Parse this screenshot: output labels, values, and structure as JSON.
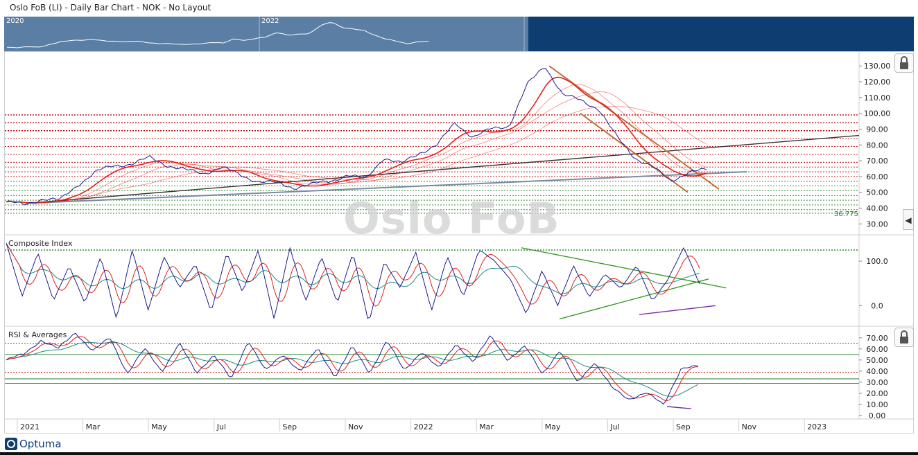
{
  "window": {
    "title": "Oslo FoB (LI) - Daily Bar Chart - NOK - No Layout"
  },
  "navigator": {
    "years": [
      "2020",
      "2022"
    ]
  },
  "watermark": "Oslo FoB",
  "panels": {
    "price": {
      "label": ""
    },
    "composite": {
      "label": "Composite Index"
    },
    "rsi": {
      "label": "RSI & Averages"
    }
  },
  "last_label": "36.775",
  "logo": {
    "text": "Optuma"
  },
  "colors": {
    "price": "#1a1a8c",
    "ma_red": "#e0201a",
    "ma_teal": "#1a8a8a",
    "level_red": "#c00000",
    "level_green": "#1f7a1f",
    "trend_brown": "#c0703a",
    "trend_black": "#333333",
    "trend_gray": "#7a8aa0",
    "nav_left": "#5a7ea4",
    "nav_right": "#0e3d72"
  },
  "chart_data": [
    {
      "type": "line",
      "title": "Oslo FoB (LI) - Daily Bar Chart - NOK",
      "x_ticks": [
        "2021",
        "Mar",
        "May",
        "Jul",
        "Sep",
        "Nov",
        "2022",
        "Mar",
        "May",
        "Jul",
        "Sep",
        "Nov",
        "2023"
      ],
      "y_ticks": [
        "30.00",
        "40.00",
        "50.00",
        "60.00",
        "70.00",
        "80.00",
        "90.00",
        "100.00",
        "110.00",
        "120.00",
        "130.00"
      ],
      "ylim": [
        24,
        138
      ],
      "series": [
        {
          "values": [
            44,
            42,
            46,
            45,
            55,
            63,
            67,
            68,
            72,
            67,
            64,
            62,
            66,
            61,
            57,
            56,
            53,
            55,
            57,
            61,
            58,
            72,
            68,
            75,
            80,
            94,
            85,
            90,
            92,
            118,
            130,
            112,
            108,
            103,
            85,
            72,
            66,
            57,
            63,
            64
          ]
        }
      ],
      "levels_red": [
        99,
        94,
        89,
        84,
        79,
        74,
        69,
        66,
        63,
        60
      ],
      "levels_green": [
        57,
        54,
        51,
        48,
        45,
        42,
        39,
        36.775
      ],
      "annotation": "36.775",
      "grid": false
    },
    {
      "type": "line",
      "title": "Composite Index",
      "y_ticks": [
        "0.0",
        "100.0"
      ],
      "ylim": [
        -40,
        150
      ],
      "series": [
        {
          "values": [
            140,
            20,
            120,
            10,
            90,
            5,
            110,
            -30,
            125,
            -10,
            110,
            40,
            95,
            -15,
            120,
            30,
            125,
            -30,
            130,
            10,
            110,
            5,
            120,
            -40,
            100,
            40,
            120,
            -10,
            110,
            20,
            125,
            100,
            60,
            -20,
            80,
            0,
            90,
            20,
            70,
            40,
            90,
            10,
            60,
            130,
            50
          ]
        }
      ],
      "level_green": 125,
      "grid": false
    },
    {
      "type": "line",
      "title": "RSI & Averages",
      "y_ticks": [
        "0.00",
        "10.00",
        "20.00",
        "30.00",
        "40.00",
        "50.00",
        "60.00",
        "70.00"
      ],
      "ylim": [
        -2,
        78
      ],
      "series": [
        {
          "values": [
            50,
            55,
            68,
            60,
            75,
            58,
            70,
            38,
            60,
            40,
            65,
            38,
            55,
            32,
            68,
            40,
            55,
            40,
            60,
            35,
            62,
            38,
            68,
            40,
            58,
            42,
            65,
            48,
            72,
            50,
            62,
            38,
            58,
            30,
            48,
            25,
            15,
            20,
            10,
            42,
            44
          ]
        }
      ],
      "levels_red": [
        65,
        39
      ],
      "levels_green": [
        55,
        33,
        29
      ],
      "grid": false
    }
  ]
}
